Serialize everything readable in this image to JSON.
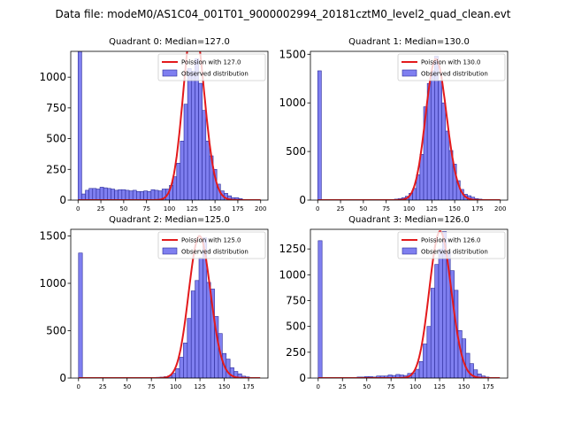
{
  "figure": {
    "title": "Data file: modeM0/AS1C04_001T01_9000002994_20181cztM0_level2_quad_clean.evt"
  },
  "style": {
    "bar_fill": "#7f7ff0",
    "bar_edge": "#2b2b9a",
    "fit_line": "#e31a1c"
  },
  "chart_data": [
    {
      "type": "bar",
      "title": "Quadrant 0: Median=127.0",
      "legend": [
        "Poission with 127.0",
        "Observed distribution"
      ],
      "legend_position": "top-right",
      "bin_width": 4,
      "bin_starts": [
        0,
        4,
        8,
        12,
        16,
        20,
        24,
        28,
        32,
        36,
        40,
        44,
        48,
        52,
        56,
        60,
        64,
        68,
        72,
        76,
        80,
        84,
        88,
        92,
        96,
        100,
        104,
        108,
        112,
        116,
        120,
        124,
        128,
        132,
        136,
        140,
        144,
        148,
        152,
        156,
        160,
        164,
        168,
        172,
        176,
        180,
        184,
        188,
        192,
        196
      ],
      "values": [
        1210,
        50,
        80,
        95,
        95,
        90,
        105,
        100,
        95,
        90,
        80,
        85,
        85,
        80,
        75,
        80,
        70,
        70,
        75,
        70,
        85,
        80,
        75,
        90,
        90,
        120,
        190,
        300,
        480,
        780,
        1070,
        1050,
        1150,
        950,
        730,
        480,
        360,
        250,
        130,
        75,
        55,
        35,
        20,
        20,
        12,
        5,
        0,
        0,
        0,
        0
      ],
      "fit": {
        "lambda": 127.0,
        "scale": 1470
      },
      "xlim": [
        -8,
        208
      ],
      "ylim": [
        0,
        1210
      ],
      "xticks": [
        0,
        25,
        50,
        75,
        100,
        125,
        150,
        175,
        200
      ],
      "yticks": [
        0,
        250,
        500,
        750,
        1000
      ]
    },
    {
      "type": "bar",
      "title": "Quadrant 1: Median=130.0",
      "legend": [
        "Poission with 130.0",
        "Observed distribution"
      ],
      "legend_position": "top-right",
      "bin_width": 4,
      "bin_starts": [
        0,
        4,
        8,
        12,
        16,
        20,
        24,
        28,
        32,
        36,
        40,
        44,
        48,
        52,
        56,
        60,
        64,
        68,
        72,
        76,
        80,
        84,
        88,
        92,
        96,
        100,
        104,
        108,
        112,
        116,
        120,
        124,
        128,
        132,
        136,
        140,
        144,
        148,
        152,
        156,
        160,
        164,
        168,
        172,
        176,
        180,
        184,
        188,
        192,
        196
      ],
      "values": [
        1330,
        0,
        0,
        0,
        0,
        0,
        0,
        0,
        0,
        0,
        0,
        0,
        0,
        0,
        0,
        0,
        0,
        0,
        0,
        0,
        5,
        10,
        15,
        25,
        40,
        70,
        120,
        260,
        470,
        960,
        1200,
        1330,
        1480,
        1230,
        1000,
        710,
        510,
        370,
        200,
        110,
        60,
        45,
        30,
        15,
        10,
        5,
        0,
        0,
        0,
        0
      ],
      "fit": {
        "lambda": 130.0,
        "scale": 1450
      },
      "xlim": [
        -8,
        208
      ],
      "ylim": [
        0,
        1530
      ],
      "xticks": [
        0,
        25,
        50,
        75,
        100,
        125,
        150,
        175,
        200
      ],
      "yticks": [
        0,
        500,
        1000,
        1500
      ]
    },
    {
      "type": "bar",
      "title": "Quadrant 2: Median=125.0",
      "legend": [
        "Poission with 125.0",
        "Observed distribution"
      ],
      "legend_position": "top-right",
      "bin_width": 4,
      "bin_starts": [
        0,
        4,
        8,
        12,
        16,
        20,
        24,
        28,
        32,
        36,
        40,
        44,
        48,
        52,
        56,
        60,
        64,
        68,
        72,
        76,
        80,
        84,
        88,
        92,
        96,
        100,
        104,
        108,
        112,
        116,
        120,
        124,
        128,
        132,
        136,
        140,
        144,
        148,
        152,
        156,
        160,
        164,
        168,
        172,
        176,
        180,
        184
      ],
      "values": [
        1320,
        0,
        0,
        0,
        0,
        0,
        0,
        0,
        0,
        0,
        0,
        0,
        0,
        0,
        0,
        0,
        0,
        0,
        0,
        5,
        8,
        10,
        15,
        25,
        50,
        100,
        220,
        370,
        630,
        920,
        1030,
        1270,
        1480,
        1010,
        940,
        650,
        470,
        260,
        200,
        110,
        70,
        45,
        20,
        12,
        5,
        0,
        0
      ],
      "fit": {
        "lambda": 125.0,
        "scale": 1500
      },
      "xlim": [
        -8,
        195
      ],
      "ylim": [
        0,
        1570
      ],
      "xticks": [
        0,
        25,
        50,
        75,
        100,
        125,
        150,
        175
      ],
      "yticks": [
        0,
        500,
        1000,
        1500
      ]
    },
    {
      "type": "bar",
      "title": "Quadrant 3: Median=126.0",
      "legend": [
        "Poission with 126.0",
        "Observed distribution"
      ],
      "legend_position": "top-right",
      "bin_width": 4,
      "bin_starts": [
        0,
        4,
        8,
        12,
        16,
        20,
        24,
        28,
        32,
        36,
        40,
        44,
        48,
        52,
        56,
        60,
        64,
        68,
        72,
        76,
        80,
        84,
        88,
        92,
        96,
        100,
        104,
        108,
        112,
        116,
        120,
        124,
        128,
        132,
        136,
        140,
        144,
        148,
        152,
        156,
        160,
        164,
        168,
        172,
        176,
        180
      ],
      "values": [
        1330,
        0,
        0,
        0,
        0,
        0,
        0,
        5,
        5,
        5,
        10,
        10,
        15,
        15,
        10,
        20,
        20,
        20,
        30,
        25,
        35,
        30,
        25,
        45,
        50,
        85,
        160,
        330,
        500,
        870,
        1100,
        1250,
        1420,
        1220,
        1040,
        850,
        460,
        380,
        240,
        140,
        80,
        40,
        20,
        10,
        5,
        0
      ],
      "fit": {
        "lambda": 126.0,
        "scale": 1420
      },
      "xlim": [
        -8,
        195
      ],
      "ylim": [
        0,
        1440
      ],
      "xticks": [
        0,
        25,
        50,
        75,
        100,
        125,
        150,
        175
      ],
      "yticks": [
        0,
        250,
        500,
        750,
        1000,
        1250
      ]
    }
  ]
}
